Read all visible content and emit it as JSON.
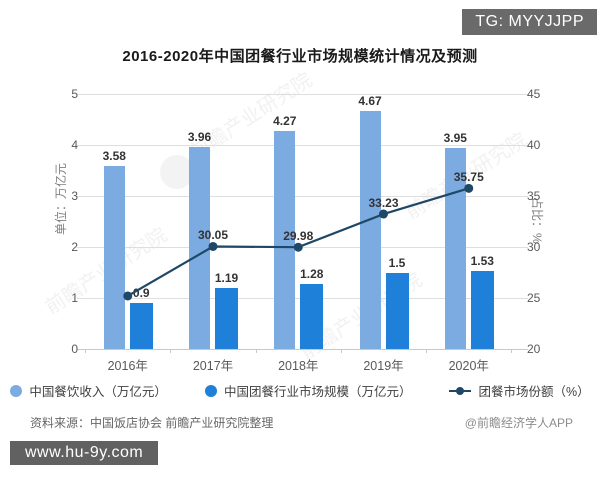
{
  "badge": {
    "text": "TG: MYYJJPP"
  },
  "chart": {
    "title": "2016-2020年中国团餐行业市场规模统计情况及预测"
  },
  "axes": {
    "left": {
      "title": "单位：万亿元",
      "ticks": [
        "0",
        "1",
        "2",
        "3",
        "4",
        "5"
      ],
      "range": [
        0,
        5
      ]
    },
    "right": {
      "title": "占比：%",
      "ticks": [
        "20",
        "25",
        "30",
        "35",
        "40",
        "45"
      ],
      "range": [
        20,
        45
      ]
    }
  },
  "chart_data": {
    "type": "bar+line",
    "categories": [
      "2016年",
      "2017年",
      "2018年",
      "2019年",
      "2020年"
    ],
    "series": [
      {
        "name": "中国餐饮收入（万亿元）",
        "type": "bar",
        "axis": "left",
        "values": [
          3.58,
          3.96,
          4.27,
          4.67,
          3.95
        ],
        "labels": [
          "3.58",
          "3.96",
          "4.27",
          "4.67",
          "3.95"
        ]
      },
      {
        "name": "中国团餐行业市场规模（万亿元）",
        "type": "bar",
        "axis": "left",
        "values": [
          0.9,
          1.19,
          1.28,
          1.5,
          1.53
        ],
        "labels": [
          "0.9",
          "1.19",
          "1.28",
          "1.5",
          "1.53"
        ]
      },
      {
        "name": "团餐市场份额（%）",
        "type": "line",
        "axis": "right",
        "values": [
          25.2,
          30.05,
          29.98,
          33.23,
          35.75
        ],
        "labels": [
          "",
          "30.05",
          "29.98",
          "33.23",
          "35.75"
        ]
      }
    ],
    "ylim_left": [
      0,
      5
    ],
    "ylim_right": [
      20,
      45
    ],
    "grid": true,
    "legend_position": "bottom"
  },
  "colors": {
    "light_bar": "#7CABE2",
    "dark_bar": "#1E80D8",
    "line": "#1F4866",
    "grid": "#DEDEDE"
  },
  "legend": {
    "items": [
      {
        "label": "中国餐饮收入（万亿元）"
      },
      {
        "label": "中国团餐行业市场规模（万亿元）"
      },
      {
        "label": "团餐市场份额（%）"
      }
    ]
  },
  "footer": {
    "source": "资料来源：中国饭店协会 前瞻产业研究院整理",
    "credit": "@前瞻经济学人APP"
  },
  "watermark": {
    "badge": "www.hu-9y.com",
    "diagonal": "前瞻产业研究院"
  }
}
